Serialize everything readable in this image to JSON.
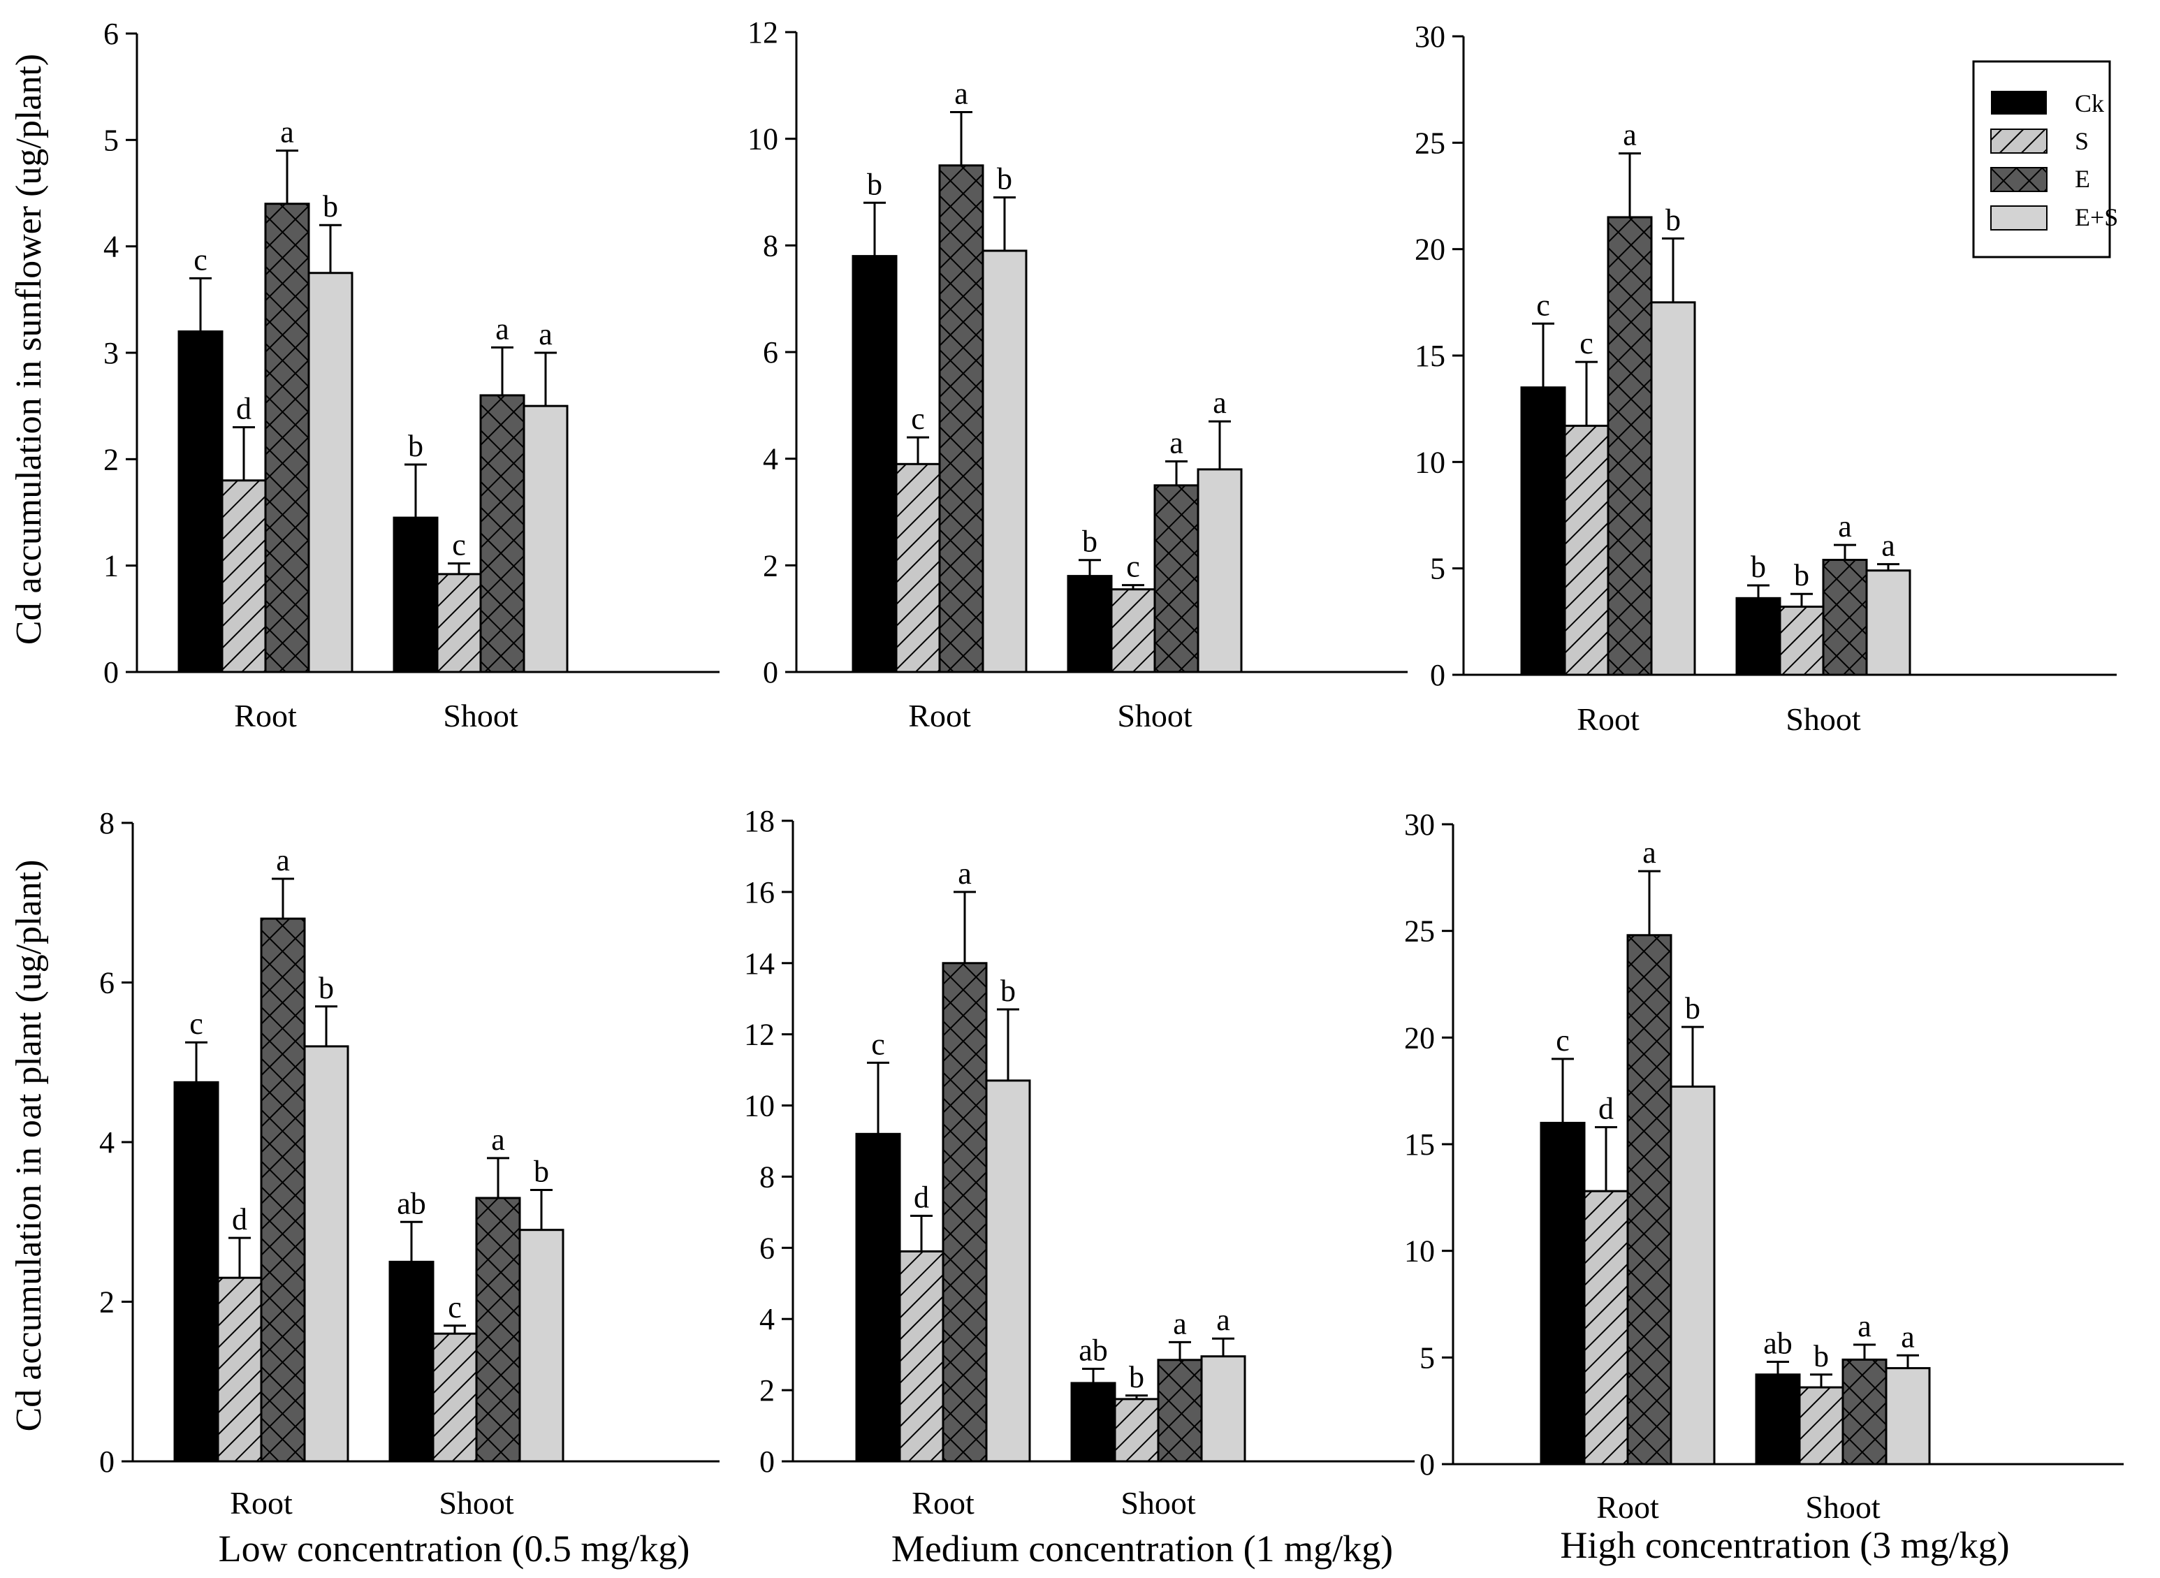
{
  "figure": {
    "ylabels": [
      "Cd accumulation in sunflower (ug/plant)",
      "Cd accumulation in oat plant (ug/plant)"
    ],
    "captions": [
      "Low concentration (0.5 mg/kg)",
      "Medium concentration (1 mg/kg)",
      "High concentration (3 mg/kg)"
    ]
  },
  "legend": {
    "items": [
      {
        "label": "Ck",
        "pattern": "solid-black"
      },
      {
        "label": "S",
        "pattern": "diagonal-hatch"
      },
      {
        "label": "E",
        "pattern": "crosshatch-dark"
      },
      {
        "label": "E+S",
        "pattern": "solid-light-gray"
      }
    ]
  },
  "colors": {
    "ck": "#000000",
    "s_fill": "#c8c8c8",
    "e_fill": "#5a5a5a",
    "es_fill": "#d3d3d3",
    "axis": "#000000"
  },
  "chart_data": [
    {
      "type": "bar",
      "panel": "sunflower-low",
      "categories": [
        "Root",
        "Shoot"
      ],
      "series_names": [
        "Ck",
        "S",
        "E",
        "E+S"
      ],
      "yticks": [
        0,
        1,
        2,
        3,
        4,
        5,
        6
      ],
      "ylim": [
        0,
        6
      ],
      "values": [
        [
          3.2,
          1.8,
          4.4,
          3.75
        ],
        [
          1.45,
          0.92,
          2.6,
          2.5
        ]
      ],
      "errors": [
        [
          0.5,
          0.5,
          0.5,
          0.45
        ],
        [
          0.5,
          0.1,
          0.45,
          0.5
        ]
      ],
      "letters": [
        [
          "c",
          "d",
          "a",
          "b"
        ],
        [
          "b",
          "c",
          "a",
          "a"
        ]
      ]
    },
    {
      "type": "bar",
      "panel": "sunflower-medium",
      "categories": [
        "Root",
        "Shoot"
      ],
      "series_names": [
        "Ck",
        "S",
        "E",
        "E+S"
      ],
      "yticks": [
        0,
        2,
        4,
        6,
        8,
        10,
        12
      ],
      "ylim": [
        0,
        12
      ],
      "values": [
        [
          7.8,
          3.9,
          9.5,
          7.9
        ],
        [
          1.8,
          1.55,
          3.5,
          3.8
        ]
      ],
      "errors": [
        [
          1.0,
          0.5,
          1.0,
          1.0
        ],
        [
          0.3,
          0.08,
          0.45,
          0.9
        ]
      ],
      "letters": [
        [
          "b",
          "c",
          "a",
          "b"
        ],
        [
          "b",
          "c",
          "a",
          "a"
        ]
      ]
    },
    {
      "type": "bar",
      "panel": "sunflower-high",
      "categories": [
        "Root",
        "Shoot"
      ],
      "series_names": [
        "Ck",
        "S",
        "E",
        "E+S"
      ],
      "yticks": [
        0,
        5,
        10,
        15,
        20,
        25,
        30
      ],
      "ylim": [
        0,
        30
      ],
      "values": [
        [
          13.5,
          11.7,
          21.5,
          17.5
        ],
        [
          3.6,
          3.2,
          5.4,
          4.9
        ]
      ],
      "errors": [
        [
          3.0,
          3.0,
          3.0,
          3.0
        ],
        [
          0.6,
          0.6,
          0.7,
          0.3
        ]
      ],
      "letters": [
        [
          "c",
          "c",
          "a",
          "b"
        ],
        [
          "b",
          "b",
          "a",
          "a"
        ]
      ]
    },
    {
      "type": "bar",
      "panel": "oat-low",
      "categories": [
        "Root",
        "Shoot"
      ],
      "series_names": [
        "Ck",
        "S",
        "E",
        "E+S"
      ],
      "yticks": [
        0,
        2,
        4,
        6,
        8
      ],
      "ylim": [
        0,
        8
      ],
      "values": [
        [
          4.75,
          2.3,
          6.8,
          5.2
        ],
        [
          2.5,
          1.6,
          3.3,
          2.9
        ]
      ],
      "errors": [
        [
          0.5,
          0.5,
          0.5,
          0.5
        ],
        [
          0.5,
          0.1,
          0.5,
          0.5
        ]
      ],
      "letters": [
        [
          "c",
          "d",
          "a",
          "b"
        ],
        [
          "ab",
          "c",
          "a",
          "b"
        ]
      ]
    },
    {
      "type": "bar",
      "panel": "oat-medium",
      "categories": [
        "Root",
        "Shoot"
      ],
      "series_names": [
        "Ck",
        "S",
        "E",
        "E+S"
      ],
      "yticks": [
        0,
        2,
        4,
        6,
        8,
        10,
        12,
        14,
        16,
        18
      ],
      "ylim": [
        0,
        18
      ],
      "values": [
        [
          9.2,
          5.9,
          14.0,
          10.7
        ],
        [
          2.2,
          1.75,
          2.85,
          2.95
        ]
      ],
      "errors": [
        [
          2.0,
          1.0,
          2.0,
          2.0
        ],
        [
          0.4,
          0.1,
          0.5,
          0.5
        ]
      ],
      "letters": [
        [
          "c",
          "d",
          "a",
          "b"
        ],
        [
          "ab",
          "b",
          "a",
          "a"
        ]
      ]
    },
    {
      "type": "bar",
      "panel": "oat-high",
      "categories": [
        "Root",
        "Shoot"
      ],
      "series_names": [
        "Ck",
        "S",
        "E",
        "E+S"
      ],
      "yticks": [
        0,
        5,
        10,
        15,
        20,
        25,
        30
      ],
      "ylim": [
        0,
        30
      ],
      "values": [
        [
          16.0,
          12.8,
          24.8,
          17.7
        ],
        [
          4.2,
          3.6,
          4.9,
          4.5
        ]
      ],
      "errors": [
        [
          3.0,
          3.0,
          3.0,
          2.8
        ],
        [
          0.6,
          0.6,
          0.7,
          0.6
        ]
      ],
      "letters": [
        [
          "c",
          "d",
          "a",
          "b"
        ],
        [
          "ab",
          "b",
          "a",
          "a"
        ]
      ]
    }
  ]
}
